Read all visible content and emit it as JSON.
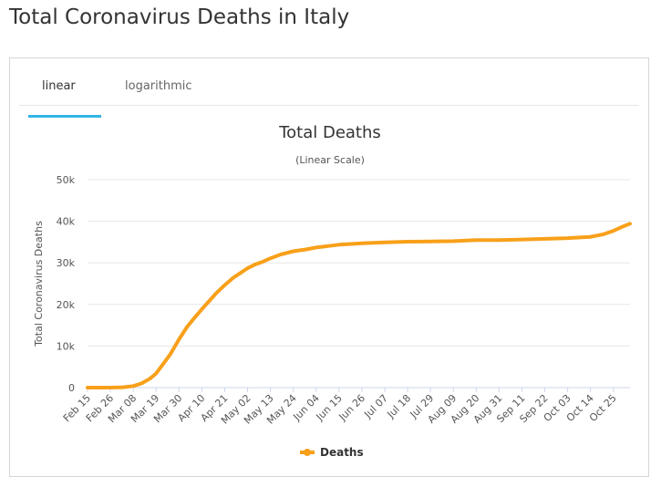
{
  "page": {
    "title": "Total Coronavirus Deaths in Italy"
  },
  "tabs": [
    {
      "label": "linear",
      "active": true
    },
    {
      "label": "logarithmic",
      "active": false
    }
  ],
  "colors": {
    "series": "#f8a01a",
    "tab_accent": "#33b5e5"
  },
  "chart_data": {
    "type": "line",
    "title": "Total Deaths",
    "subtitle": "(Linear Scale)",
    "ylabel": "Total Coronavirus Deaths",
    "xlabel": "",
    "ylim": [
      0,
      50000
    ],
    "yticks": [
      0,
      10000,
      20000,
      30000,
      40000,
      50000
    ],
    "ytick_labels": [
      "0",
      "10k",
      "20k",
      "30k",
      "40k",
      "50k"
    ],
    "xtick_labels": [
      "Feb 15",
      "Feb 26",
      "Mar 08",
      "Mar 19",
      "Mar 30",
      "Apr 10",
      "Apr 21",
      "May 02",
      "May 13",
      "May 24",
      "Jun 04",
      "Jun 15",
      "Jun 26",
      "Jul 07",
      "Jul 18",
      "Jul 29",
      "Aug 09",
      "Aug 20",
      "Aug 31",
      "Sep 11",
      "Sep 22",
      "Oct 03",
      "Oct 14",
      "Oct 25"
    ],
    "grid": true,
    "legend_position": "bottom",
    "series": [
      {
        "name": "Deaths",
        "x": [
          "Feb 15",
          "Feb 26",
          "Mar 03",
          "Mar 08",
          "Mar 12",
          "Mar 16",
          "Mar 19",
          "Mar 23",
          "Mar 26",
          "Mar 30",
          "Apr 03",
          "Apr 06",
          "Apr 10",
          "Apr 14",
          "Apr 17",
          "Apr 21",
          "Apr 25",
          "Apr 28",
          "May 02",
          "May 06",
          "May 09",
          "May 13",
          "May 18",
          "May 24",
          "May 30",
          "Jun 04",
          "Jun 15",
          "Jun 26",
          "Jul 07",
          "Jul 18",
          "Jul 29",
          "Aug 09",
          "Aug 20",
          "Aug 31",
          "Sep 11",
          "Sep 22",
          "Oct 03",
          "Oct 14",
          "Oct 20",
          "Oct 25",
          "Oct 29",
          "Nov 02"
        ],
        "values": [
          0,
          7,
          79,
          366,
          1016,
          2158,
          3405,
          6077,
          8165,
          11591,
          14681,
          16523,
          18849,
          21067,
          22745,
          24648,
          26384,
          27359,
          28710,
          29684,
          30201,
          31106,
          32007,
          32785,
          33229,
          33689,
          34371,
          34716,
          34914,
          35092,
          35132,
          35225,
          35477,
          35483,
          35610,
          35758,
          35941,
          36246,
          36832,
          37700,
          38618,
          39412
        ]
      }
    ]
  }
}
